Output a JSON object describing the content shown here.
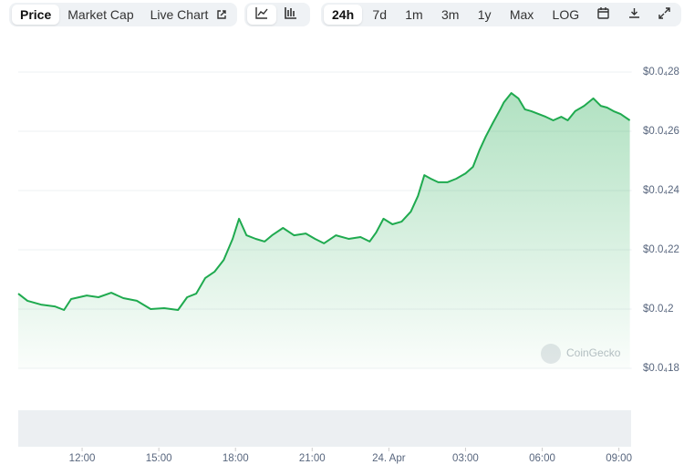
{
  "toolbar": {
    "views": [
      "Price",
      "Market Cap",
      "Live Chart"
    ],
    "ranges": [
      "24h",
      "7d",
      "1m",
      "3m",
      "1y",
      "Max",
      "LOG"
    ]
  },
  "watermark": "CoinGecko",
  "chart_data": {
    "type": "line",
    "color": "#1faa4f",
    "x": [
      9.5,
      9.86,
      10.39,
      10.93,
      11.29,
      11.57,
      12.18,
      12.64,
      13.14,
      13.61,
      14.14,
      14.68,
      15.21,
      15.75,
      16.11,
      16.46,
      16.82,
      17.18,
      17.54,
      17.89,
      18.14,
      18.43,
      18.79,
      19.14,
      19.43,
      19.86,
      20.29,
      20.75,
      21.11,
      21.46,
      21.93,
      22.43,
      22.89,
      23.25,
      23.5,
      23.79,
      24.14,
      24.5,
      24.86,
      25.14,
      25.39,
      25.64,
      25.93,
      26.29,
      26.64,
      27,
      27.29,
      27.54,
      27.79,
      28.07,
      28.36,
      28.5,
      28.79,
      29.07,
      29.32,
      29.57,
      29.86,
      30.14,
      30.43,
      30.75,
      31,
      31.29,
      31.64,
      32,
      32.29,
      32.54,
      32.79,
      33.07,
      33.43
    ],
    "values": [
      2.052e-05,
      2.028e-05,
      2.015e-05,
      2.009e-05,
      1.997e-05,
      2.034e-05,
      2.046e-05,
      2.04e-05,
      2.055e-05,
      2.037e-05,
      2.028e-05,
      2e-05,
      2.003e-05,
      1.997e-05,
      2.04e-05,
      2.052e-05,
      2.105e-05,
      2.126e-05,
      2.166e-05,
      2.237e-05,
      2.305e-05,
      2.249e-05,
      2.237e-05,
      2.228e-05,
      2.249e-05,
      2.274e-05,
      2.249e-05,
      2.255e-05,
      2.237e-05,
      2.222e-05,
      2.249e-05,
      2.237e-05,
      2.243e-05,
      2.228e-05,
      2.258e-05,
      2.305e-05,
      2.286e-05,
      2.295e-05,
      2.329e-05,
      2.382e-05,
      2.452e-05,
      2.44e-05,
      2.428e-05,
      2.428e-05,
      2.44e-05,
      2.458e-05,
      2.48e-05,
      2.535e-05,
      2.582e-05,
      2.628e-05,
      2.674e-05,
      2.698e-05,
      2.729e-05,
      2.711e-05,
      2.674e-05,
      2.668e-05,
      2.658e-05,
      2.649e-05,
      2.637e-05,
      2.649e-05,
      2.637e-05,
      2.668e-05,
      2.686e-05,
      2.711e-05,
      2.686e-05,
      2.68e-05,
      2.668e-05,
      2.658e-05,
      2.637e-05
    ],
    "xlim": [
      9.5,
      33.5
    ],
    "xticks": [
      {
        "value": 12,
        "label": "12:00"
      },
      {
        "value": 15,
        "label": "15:00"
      },
      {
        "value": 18,
        "label": "18:00"
      },
      {
        "value": 21,
        "label": "21:00"
      },
      {
        "value": 24,
        "label": "24. Apr"
      },
      {
        "value": 27,
        "label": "03:00"
      },
      {
        "value": 30,
        "label": "06:00"
      },
      {
        "value": 33,
        "label": "09:00"
      }
    ],
    "ylim": [
      1.8e-05,
      2.8e-05
    ],
    "yticks": [
      {
        "value": 2.8e-05,
        "label": "$0.0₄28"
      },
      {
        "value": 2.6e-05,
        "label": "$0.0₄26"
      },
      {
        "value": 2.4e-05,
        "label": "$0.0₄24"
      },
      {
        "value": 2.2e-05,
        "label": "$0.0₄22"
      },
      {
        "value": 2e-05,
        "label": "$0.0₄2"
      },
      {
        "value": 1.8e-05,
        "label": "$0.0₄18"
      }
    ],
    "grid": true
  }
}
